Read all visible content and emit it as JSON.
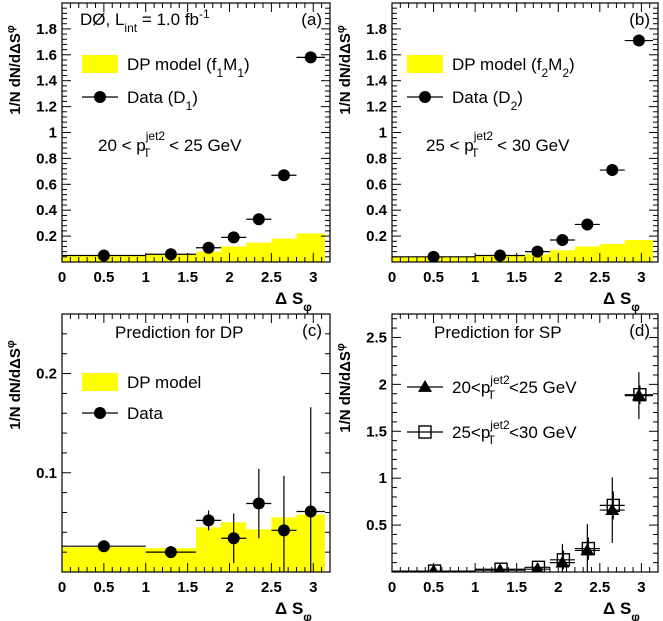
{
  "figure_colors": {
    "model_fill": "#ffff00",
    "axis": "#000000",
    "background": "#ffffff"
  },
  "x_bins": [
    [
      0,
      1
    ],
    [
      1,
      1.6
    ],
    [
      1.6,
      1.9
    ],
    [
      1.9,
      2.2
    ],
    [
      2.2,
      2.5
    ],
    [
      2.5,
      2.8
    ],
    [
      2.8,
      3.14
    ]
  ],
  "x_centers": [
    0.5,
    1.3,
    1.75,
    2.05,
    2.35,
    2.65,
    2.97
  ],
  "chart_data": [
    {
      "id": "a",
      "type": "bar",
      "panel_label": "(a)",
      "experiment_label": "DØ, L",
      "experiment_label_sub": "int",
      "experiment_label_tail": " = 1.0 fb",
      "experiment_label_sup": "-1",
      "xlabel": "Δ S",
      "xlabel_sub": "φ",
      "ylabel": "1/N dN/dΔS",
      "ylabel_sub": "φ",
      "xlim": [
        0,
        3.2
      ],
      "ylim": [
        0,
        2.0
      ],
      "xticks": [
        "0",
        "0.5",
        "1",
        "1.5",
        "2",
        "2.5",
        "3"
      ],
      "xtick_values": [
        0,
        0.5,
        1,
        1.5,
        2,
        2.5,
        3
      ],
      "yticks": [
        "0.2",
        "0.4",
        "0.6",
        "0.8",
        "1",
        "1.2",
        "1.4",
        "1.6",
        "1.8"
      ],
      "ytick_values": [
        0.2,
        0.4,
        0.6,
        0.8,
        1.0,
        1.2,
        1.4,
        1.6,
        1.8
      ],
      "legend": [
        {
          "kind": "box",
          "pre": "DP model (f",
          "sub1": "1",
          "mid": "M",
          "sub2": "1",
          "post": ")"
        },
        {
          "kind": "circle",
          "pre": "Data (D",
          "sub1": "1",
          "mid": "",
          "sub2": "",
          "post": ")"
        }
      ],
      "cut_label": {
        "pre": "20 < p",
        "sub": "T",
        "sup": "jet2",
        "post": " < 25 GeV"
      },
      "series": [
        {
          "kind": "hist",
          "values": [
            0.05,
            0.06,
            0.08,
            0.12,
            0.15,
            0.18,
            0.22
          ]
        },
        {
          "kind": "points",
          "marker": "circle",
          "y": [
            0.05,
            0.06,
            0.11,
            0.19,
            0.33,
            0.67,
            1.58
          ],
          "yerr": [
            0.005,
            0.005,
            0.01,
            0.01,
            0.015,
            0.02,
            0.03
          ]
        }
      ]
    },
    {
      "id": "b",
      "type": "bar",
      "panel_label": "(b)",
      "xlabel": "Δ S",
      "xlabel_sub": "φ",
      "ylabel": "1/N dN/dΔS",
      "ylabel_sub": "φ",
      "xlim": [
        0,
        3.2
      ],
      "ylim": [
        0,
        2.0
      ],
      "xticks": [
        "0",
        "0.5",
        "1",
        "1.5",
        "2",
        "2.5",
        "3"
      ],
      "xtick_values": [
        0,
        0.5,
        1,
        1.5,
        2,
        2.5,
        3
      ],
      "yticks": [
        "0.2",
        "0.4",
        "0.6",
        "0.8",
        "1",
        "1.2",
        "1.4",
        "1.6",
        "1.8"
      ],
      "ytick_values": [
        0.2,
        0.4,
        0.6,
        0.8,
        1.0,
        1.2,
        1.4,
        1.6,
        1.8
      ],
      "legend": [
        {
          "kind": "box",
          "pre": "DP model (f",
          "sub1": "2",
          "mid": "M",
          "sub2": "2",
          "post": ")"
        },
        {
          "kind": "circle",
          "pre": "Data (D",
          "sub1": "2",
          "mid": "",
          "sub2": "",
          "post": ")"
        }
      ],
      "cut_label": {
        "pre": "25 < p",
        "sub": "T",
        "sup": "jet2",
        "post": " < 30 GeV"
      },
      "series": [
        {
          "kind": "hist",
          "values": [
            0.04,
            0.05,
            0.06,
            0.09,
            0.12,
            0.14,
            0.17
          ]
        },
        {
          "kind": "points",
          "marker": "circle",
          "y": [
            0.04,
            0.05,
            0.08,
            0.17,
            0.29,
            0.71,
            1.71
          ],
          "yerr": [
            0.005,
            0.005,
            0.01,
            0.01,
            0.015,
            0.02,
            0.03
          ]
        }
      ]
    },
    {
      "id": "c",
      "type": "bar",
      "panel_label": "(c)",
      "title": "Prediction for DP",
      "xlabel": "Δ S",
      "xlabel_sub": "φ",
      "ylabel": "1/N dN/dΔS",
      "ylabel_sub": "φ",
      "xlim": [
        0,
        3.2
      ],
      "ylim": [
        0,
        0.26
      ],
      "xticks": [
        "0",
        "0.5",
        "1",
        "1.5",
        "2",
        "2.5",
        "3"
      ],
      "xtick_values": [
        0,
        0.5,
        1,
        1.5,
        2,
        2.5,
        3
      ],
      "yticks": [
        "0.1",
        "0.2"
      ],
      "ytick_values": [
        0.1,
        0.2
      ],
      "legend": [
        {
          "kind": "box",
          "pre": "DP model",
          "sub1": "",
          "mid": "",
          "sub2": "",
          "post": ""
        },
        {
          "kind": "circle",
          "pre": "Data",
          "sub1": "",
          "mid": "",
          "sub2": "",
          "post": ""
        }
      ],
      "series": [
        {
          "kind": "hist",
          "values": [
            0.025,
            0.024,
            0.045,
            0.05,
            0.043,
            0.055,
            0.058
          ]
        },
        {
          "kind": "points",
          "marker": "circle",
          "y": [
            0.026,
            0.02,
            0.052,
            0.034,
            0.069,
            0.042,
            0.061
          ],
          "yerr": [
            0.002,
            0.003,
            0.01,
            0.025,
            0.035,
            0.055,
            0.105
          ]
        }
      ]
    },
    {
      "id": "d",
      "type": "scatter",
      "panel_label": "(d)",
      "title": "Prediction for SP",
      "xlabel": "Δ S",
      "xlabel_sub": "φ",
      "ylabel": "1/N dN/dΔS",
      "ylabel_sub": "φ",
      "xlim": [
        0,
        3.2
      ],
      "ylim": [
        0,
        2.75
      ],
      "xticks": [
        "0",
        "0.5",
        "1",
        "1.5",
        "2",
        "2.5",
        "3"
      ],
      "xtick_values": [
        0,
        0.5,
        1,
        1.5,
        2,
        2.5,
        3
      ],
      "yticks": [
        "0.5",
        "1",
        "1.5",
        "2",
        "2.5"
      ],
      "ytick_values": [
        0.5,
        1.0,
        1.5,
        2.0,
        2.5
      ],
      "legend": [
        {
          "kind": "triangle",
          "pre": "20<p",
          "sub": "T",
          "sup": "jet2",
          "post": "<25 GeV"
        },
        {
          "kind": "square",
          "pre": "25<p",
          "sub": "T",
          "sup": "jet2",
          "post": "<30 GeV"
        }
      ],
      "series": [
        {
          "kind": "points",
          "marker": "triangle",
          "y": [
            0.01,
            0.02,
            0.03,
            0.1,
            0.23,
            0.66,
            1.88
          ],
          "yerr": [
            0.01,
            0.01,
            0.05,
            0.2,
            0.28,
            0.35,
            0.25
          ]
        },
        {
          "kind": "points",
          "marker": "square",
          "y": [
            0.01,
            0.03,
            0.05,
            0.13,
            0.25,
            0.71,
            1.89
          ],
          "yerr": [
            0.01,
            0.01,
            0.04,
            0.1,
            0.12,
            0.15,
            0.1
          ]
        }
      ]
    }
  ]
}
